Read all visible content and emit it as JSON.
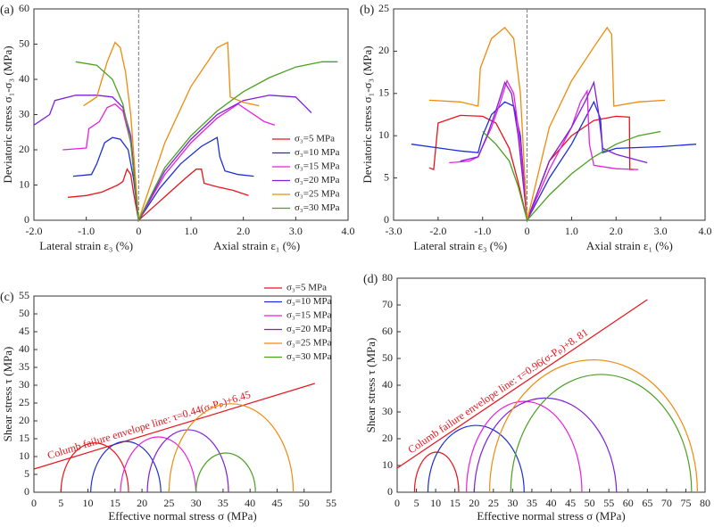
{
  "chart_data": [
    {
      "type": "line",
      "panel": "(a)",
      "ylabel": "Deviatoric stress σ₁-σ₃ (MPa)",
      "xlabel_left": "Lateral strain ε₃ (%)",
      "xlabel_right": "Axial strain ε₁ (%)",
      "xlim": [
        -2,
        4
      ],
      "xticks": [
        {
          "value": -2,
          "label": "-2.0"
        },
        {
          "value": -1,
          "label": "-1.0"
        },
        0,
        {
          "value": 1,
          "label": "1.0"
        },
        {
          "value": 2,
          "label": "2.0"
        },
        {
          "value": 3,
          "label": "3.0"
        },
        {
          "value": 4,
          "label": "4.0"
        }
      ],
      "ylim": [
        0,
        60
      ],
      "yticks": [
        0,
        10,
        20,
        30,
        40,
        50,
        60
      ],
      "series": [
        {
          "name": "σ₃=5 MPa",
          "color": "#e8141b",
          "x": [
            -1.35,
            -1.0,
            -0.7,
            -0.4,
            -0.3,
            -0.22,
            -0.15,
            -0.1,
            -0.05,
            0,
            0.3,
            0.6,
            0.9,
            1.1,
            1.2,
            1.25,
            1.5,
            1.8,
            2.1
          ],
          "values": [
            6.5,
            7,
            8,
            10,
            11,
            14.5,
            13,
            8,
            4,
            0,
            4,
            8,
            12,
            14.5,
            14.5,
            10.5,
            9.5,
            8.5,
            7
          ]
        },
        {
          "name": "σ₃=10 MPa",
          "color": "#1c2fd6",
          "x": [
            -1.25,
            -0.9,
            -0.8,
            -0.65,
            -0.5,
            -0.35,
            -0.2,
            -0.1,
            0,
            0.4,
            0.8,
            1.2,
            1.5,
            1.55,
            1.65,
            1.9,
            2.2
          ],
          "values": [
            12.5,
            13,
            16,
            22,
            23.5,
            23,
            20,
            12,
            0,
            9,
            16,
            21,
            23.5,
            18,
            14,
            13,
            12.5
          ]
        },
        {
          "name": "σ₃=15 MPa",
          "color": "#ea1fe0",
          "x": [
            -1.45,
            -1.0,
            -0.95,
            -0.75,
            -0.6,
            -0.45,
            -0.3,
            -0.15,
            0,
            0.5,
            1.0,
            1.5,
            1.9,
            2.1,
            2.4,
            2.6
          ],
          "values": [
            20,
            20.5,
            26,
            28,
            32,
            33,
            31,
            22,
            0,
            13,
            22,
            29,
            33,
            31,
            28,
            27
          ]
        },
        {
          "name": "σ₃=20 MPa",
          "color": "#7e1fdc",
          "x": [
            -2.0,
            -1.7,
            -1.6,
            -1.2,
            -0.8,
            -0.5,
            -0.3,
            -0.15,
            0,
            0.5,
            1.0,
            1.5,
            2.0,
            2.5,
            3.0,
            3.2,
            3.3
          ],
          "values": [
            27,
            30,
            34,
            35.5,
            35.5,
            35,
            32,
            24,
            0,
            14,
            23,
            30,
            34,
            35.5,
            35,
            32,
            30.5
          ]
        },
        {
          "name": "σ₃=25 MPa",
          "color": "#f08a0b",
          "x": [
            -1.05,
            -0.8,
            -0.6,
            -0.45,
            -0.35,
            -0.25,
            -0.15,
            0,
            0.5,
            1.0,
            1.5,
            1.7,
            1.75,
            2.0,
            2.3
          ],
          "values": [
            32.5,
            35,
            45,
            50.5,
            49,
            42,
            30,
            0,
            22,
            38,
            49,
            50.5,
            35,
            33.5,
            32.5
          ]
        },
        {
          "name": "σ₃=30 MPa",
          "color": "#4aa01f",
          "x": [
            -1.2,
            -0.8,
            -0.5,
            -0.3,
            -0.15,
            0,
            0.5,
            1.0,
            1.5,
            2.0,
            2.5,
            3.0,
            3.5,
            3.8
          ],
          "values": [
            45,
            44,
            40,
            33,
            22,
            0,
            15,
            24,
            31,
            36.5,
            40.5,
            43.5,
            45,
            45
          ]
        }
      ]
    },
    {
      "type": "line",
      "panel": "(b)",
      "ylabel": "Deviatoric stress σ₁-σ₃ (MPa)",
      "xlabel_left": "Lateral strain ε₃ (%)",
      "xlabel_right": "Axial strain ε₁ (%)",
      "xlim": [
        -3,
        4
      ],
      "xticks": [
        {
          "value": -3,
          "label": "-3.0"
        },
        {
          "value": -2,
          "label": "-2.0"
        },
        {
          "value": -1,
          "label": "-1.0"
        },
        0,
        {
          "value": 1,
          "label": "1.0"
        },
        {
          "value": 2,
          "label": "2.0"
        },
        {
          "value": 3,
          "label": "3.0"
        },
        {
          "value": 4,
          "label": "4.0"
        }
      ],
      "ylim": [
        0,
        25
      ],
      "yticks": [
        0,
        5,
        10,
        15,
        20,
        25
      ],
      "series": [
        {
          "color": "#e8141b",
          "x": [
            -2.2,
            -2.1,
            -2.0,
            -1.5,
            -1.0,
            -0.7,
            -0.4,
            -0.2,
            0,
            0.5,
            1.0,
            1.5,
            2.0,
            2.3,
            2.31,
            2.4
          ],
          "values": [
            6.2,
            6,
            11.5,
            12.4,
            12.3,
            11.5,
            8.5,
            4.5,
            0,
            7,
            10,
            11.8,
            12.3,
            12.2,
            6,
            6
          ]
        },
        {
          "color": "#1c2fd6",
          "x": [
            -2.6,
            -1.5,
            -1.1,
            -1.0,
            -0.8,
            -0.5,
            -0.3,
            -0.15,
            0,
            0.5,
            1.0,
            1.3,
            1.5,
            1.65,
            1.7,
            2.0,
            3.0,
            3.8
          ],
          "values": [
            9,
            8.2,
            8,
            10,
            12.5,
            14,
            13.5,
            10,
            0,
            5,
            9,
            12,
            14,
            12,
            8,
            8.5,
            8.7,
            9
          ]
        },
        {
          "color": "#ea1fe0",
          "x": [
            -1.75,
            -1.3,
            -1.1,
            -1.0,
            -0.8,
            -0.6,
            -0.45,
            -0.3,
            -0.15,
            0,
            0.5,
            1.0,
            1.2,
            1.35,
            1.4,
            1.5,
            2.0,
            2.5
          ],
          "values": [
            6.8,
            7,
            7.5,
            8.7,
            11,
            14,
            16.5,
            15,
            9,
            0,
            6,
            11,
            14,
            15.3,
            9,
            6.5,
            6.1,
            6
          ]
        },
        {
          "color": "#7e1fdc",
          "x": [
            -1.5,
            -1.1,
            -0.9,
            -0.7,
            -0.5,
            -0.35,
            -0.2,
            0,
            0.5,
            1.0,
            1.3,
            1.5,
            1.6,
            1.7,
            2.0,
            2.7
          ],
          "values": [
            7,
            7.5,
            10,
            13,
            16.3,
            15,
            10,
            0,
            7,
            11,
            14,
            16.3,
            13,
            8.5,
            7.8,
            6.8
          ]
        },
        {
          "color": "#f08a0b",
          "x": [
            -2.2,
            -1.5,
            -1.1,
            -1.05,
            -0.8,
            -0.5,
            -0.3,
            -0.15,
            0,
            0.5,
            1.0,
            1.5,
            1.8,
            1.9,
            1.95,
            2.5,
            3.1
          ],
          "values": [
            14.2,
            14,
            13.5,
            18,
            21.5,
            22.8,
            21.5,
            15,
            0,
            11,
            16.5,
            20.5,
            22.8,
            22,
            13.5,
            14,
            14.2
          ]
        },
        {
          "color": "#4aa01f",
          "x": [
            -1.0,
            -0.7,
            -0.4,
            -0.2,
            0,
            0.5,
            1.0,
            1.5,
            2.0,
            2.5,
            3.0
          ],
          "values": [
            10.5,
            9,
            7,
            4,
            0,
            3,
            5.5,
            7.5,
            9,
            10,
            10.5
          ]
        }
      ]
    },
    {
      "type": "mohr",
      "panel": "(c)",
      "ylabel": "Shear stress τ (MPa)",
      "xlabel": "Effective normal stress σ (MPa)",
      "xlim": [
        0,
        55
      ],
      "xticks": [
        0,
        5,
        10,
        15,
        20,
        25,
        30,
        35,
        40,
        45,
        50,
        55
      ],
      "ylim": [
        0,
        55
      ],
      "yticks": [
        0,
        5,
        10,
        15,
        20,
        25,
        30,
        35,
        40,
        45,
        50,
        55
      ],
      "envelope": {
        "label": "Columb failure envelope line: τ=0.44(σ-Pₚ)+6.45",
        "color": "#e8141b",
        "x": [
          0,
          52
        ],
        "y": [
          6.5,
          30.5
        ]
      },
      "circles": [
        {
          "name": "σ₃=5 MPa",
          "color": "#e8141b",
          "sigma3": 5,
          "sigma1": 17.5,
          "tau": 13.8
        },
        {
          "name": "σ₃=10 MPa",
          "color": "#1c2fd6",
          "sigma3": 10.5,
          "sigma1": 23.5,
          "tau": 15
        },
        {
          "name": "σ₃=15 MPa",
          "color": "#ea1fe0",
          "sigma3": 16,
          "sigma1": 30,
          "tau": 16.3
        },
        {
          "name": "σ₃=20 MPa",
          "color": "#7e1fdc",
          "sigma3": 21,
          "sigma1": 36,
          "tau": 17.5
        },
        {
          "name": "σ₃=25 MPa",
          "color": "#f08a0b",
          "sigma3": 25,
          "sigma1": 48,
          "tau": 24.8
        },
        {
          "name": "σ₃=30 MPa",
          "color": "#4aa01f",
          "sigma3": 30,
          "sigma1": 41,
          "tau": 11
        }
      ]
    },
    {
      "type": "mohr",
      "panel": "(d)",
      "ylabel": "Shear stress τ (MPa)",
      "xlabel": "Effective normal stress σ (MPa)",
      "xlim": [
        0,
        80
      ],
      "xticks": [
        0,
        5,
        10,
        15,
        20,
        25,
        30,
        35,
        40,
        45,
        50,
        55,
        60,
        65,
        70,
        75,
        80
      ],
      "ylim": [
        0,
        80
      ],
      "yticks": [
        0,
        10,
        20,
        30,
        40,
        50,
        60,
        70,
        80
      ],
      "envelope": {
        "label": "Columb failure envelope line: τ=0.96(σ-Pₚ)+8. 81",
        "color": "#e8141b",
        "x": [
          0,
          65
        ],
        "y": [
          9,
          72
        ]
      },
      "circles": [
        {
          "color": "#e8141b",
          "sigma3": 4.5,
          "sigma1": 16,
          "tau": 15
        },
        {
          "color": "#1c2fd6",
          "sigma3": 8,
          "sigma1": 33,
          "tau": 25
        },
        {
          "color": "#ea1fe0",
          "sigma3": 18,
          "sigma1": 48,
          "tau": 34
        },
        {
          "color": "#7e1fdc",
          "sigma3": 20,
          "sigma1": 57,
          "tau": 36.5
        },
        {
          "color": "#f08a0b",
          "sigma3": 24,
          "sigma1": 78,
          "tau": 49.5
        },
        {
          "color": "#4aa01f",
          "sigma3": 29.5,
          "sigma1": 76.5,
          "tau": 44
        }
      ]
    }
  ]
}
